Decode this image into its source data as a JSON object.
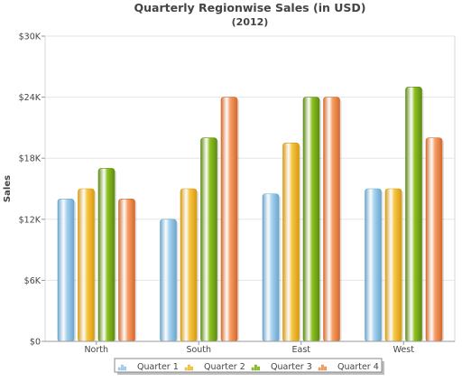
{
  "chart_data": {
    "type": "bar",
    "title": "Quarterly Regionwise Sales (in USD)",
    "subtitle": "(2012)",
    "xlabel": "",
    "ylabel": "Sales",
    "categories": [
      "North",
      "South",
      "East",
      "West"
    ],
    "ylim": [
      0,
      30000
    ],
    "yticks": [
      0,
      6000,
      12000,
      18000,
      24000,
      30000
    ],
    "ytick_labels": [
      "$0",
      "$6K",
      "$12K",
      "$18K",
      "$24K",
      "$30K"
    ],
    "grid": true,
    "legend_position": "bottom",
    "series": [
      {
        "name": "Quarter 1",
        "values": [
          14000,
          12000,
          14500,
          15000
        ],
        "color": "#a9d4f0",
        "dark": "#6aa6cf"
      },
      {
        "name": "Quarter 2",
        "values": [
          15000,
          15000,
          19500,
          15000
        ],
        "color": "#f7c843",
        "dark": "#d89a10"
      },
      {
        "name": "Quarter 3",
        "values": [
          17000,
          20000,
          24000,
          25000
        ],
        "color": "#8ec21f",
        "dark": "#5e8c12"
      },
      {
        "name": "Quarter 4",
        "values": [
          14000,
          24000,
          24000,
          20000
        ],
        "color": "#f7a068",
        "dark": "#d6692a"
      }
    ]
  }
}
